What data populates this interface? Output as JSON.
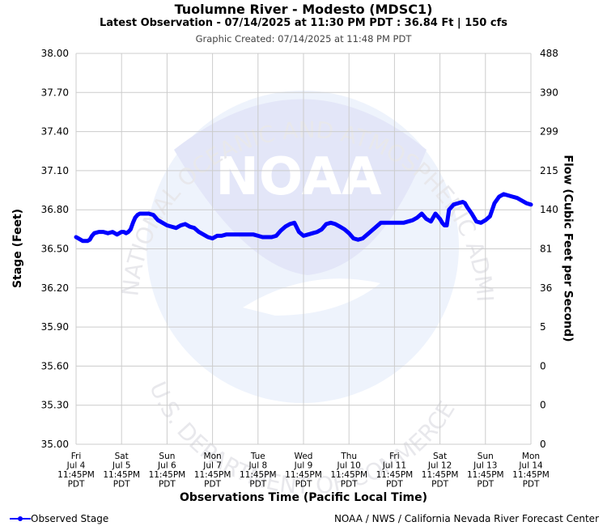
{
  "header": {
    "title": "Tuolumne River - Modesto (MDSC1)",
    "subtitle": "Latest Observation - 07/14/2025 at 11:30 PM PDT : 36.84 Ft | 150 cfs",
    "created": "Graphic Created: 07/14/2025 at 11:48 PM PDT"
  },
  "footer": {
    "legend_label": "Observed Stage",
    "credit": "NOAA / NWS / California Nevada River Forecast Center"
  },
  "watermark": {
    "logo": "NOAA",
    "ring_top": "NATIONAL OCEANIC AND ATMOSPHERIC ADMINISTRATION",
    "ring_bottom": "U.S. DEPARTMENT OF COMMERCE"
  },
  "colors": {
    "series": "#0000ff",
    "grid": "#cccccc",
    "watermark": "#e6eefb"
  },
  "chart_data": {
    "type": "line",
    "xlabel": "Observations Time (Pacific Local Time)",
    "ylabel": "Stage (Feet)",
    "ylabel_right": "Flow (Cubic Feet per Second)",
    "ylim": [
      35.0,
      38.0
    ],
    "yticks": [
      "35.00",
      "35.30",
      "35.60",
      "35.90",
      "36.20",
      "36.50",
      "36.80",
      "37.10",
      "37.40",
      "37.70",
      "38.00"
    ],
    "yticks_right": [
      "0",
      "0",
      "0",
      "5",
      "36",
      "81",
      "140",
      "215",
      "299",
      "390",
      "488"
    ],
    "xlim_days": [
      "Fri Jul 4 11:45PM PDT",
      "Mon Jul 14 11:45PM PDT"
    ],
    "xticks": [
      [
        "Fri",
        "Jul 4",
        "11:45PM",
        "PDT"
      ],
      [
        "Sat",
        "Jul 5",
        "11:45PM",
        "PDT"
      ],
      [
        "Sun",
        "Jul 6",
        "11:45PM",
        "PDT"
      ],
      [
        "Mon",
        "Jul 7",
        "11:45PM",
        "PDT"
      ],
      [
        "Tue",
        "Jul 8",
        "11:45PM",
        "PDT"
      ],
      [
        "Wed",
        "Jul 9",
        "11:45PM",
        "PDT"
      ],
      [
        "Thu",
        "Jul 10",
        "11:45PM",
        "PDT"
      ],
      [
        "Fri",
        "Jul 11",
        "11:45PM",
        "PDT"
      ],
      [
        "Sat",
        "Jul 12",
        "11:45PM",
        "PDT"
      ],
      [
        "Sun",
        "Jul 13",
        "11:45PM",
        "PDT"
      ],
      [
        "Mon",
        "Jul 14",
        "11:45PM",
        "PDT"
      ]
    ],
    "grid": true,
    "series": [
      {
        "name": "Observed Stage",
        "x": [
          0,
          0.05,
          0.1,
          0.15,
          0.2,
          0.25,
          0.3,
          0.35,
          0.4,
          0.5,
          0.6,
          0.7,
          0.8,
          0.9,
          1.0,
          1.05,
          1.1,
          1.15,
          1.2,
          1.25,
          1.3,
          1.35,
          1.4,
          1.5,
          1.6,
          1.7,
          1.8,
          1.9,
          2.0,
          2.1,
          2.2,
          2.3,
          2.4,
          2.5,
          2.6,
          2.7,
          2.8,
          2.9,
          3.0,
          3.1,
          3.2,
          3.3,
          3.5,
          3.7,
          3.9,
          4.0,
          4.1,
          4.2,
          4.3,
          4.4,
          4.5,
          4.6,
          4.7,
          4.8,
          4.9,
          5.0,
          5.1,
          5.2,
          5.3,
          5.4,
          5.5,
          5.6,
          5.7,
          5.8,
          5.9,
          6.0,
          6.1,
          6.2,
          6.3,
          6.4,
          6.5,
          6.7,
          6.9,
          7.1,
          7.2,
          7.3,
          7.4,
          7.5,
          7.6,
          7.7,
          7.8,
          7.9,
          8.0,
          8.05,
          8.1,
          8.15,
          8.2,
          8.3,
          8.4,
          8.5,
          8.55,
          8.6,
          8.7,
          8.8,
          8.9,
          9.0,
          9.1,
          9.2,
          9.3,
          9.4,
          9.5,
          9.6,
          9.7,
          9.8,
          9.9,
          10.0
        ],
        "y": [
          36.59,
          36.58,
          36.57,
          36.56,
          36.56,
          36.56,
          36.57,
          36.6,
          36.62,
          36.63,
          36.63,
          36.62,
          36.63,
          36.61,
          36.63,
          36.63,
          36.62,
          36.63,
          36.65,
          36.7,
          36.74,
          36.76,
          36.77,
          36.77,
          36.77,
          36.76,
          36.72,
          36.7,
          36.68,
          36.67,
          36.66,
          36.68,
          36.69,
          36.67,
          36.66,
          36.63,
          36.61,
          36.59,
          36.58,
          36.6,
          36.6,
          36.61,
          36.61,
          36.61,
          36.61,
          36.6,
          36.59,
          36.59,
          36.59,
          36.6,
          36.64,
          36.67,
          36.69,
          36.7,
          36.63,
          36.6,
          36.61,
          36.62,
          36.63,
          36.65,
          36.69,
          36.7,
          36.69,
          36.67,
          36.65,
          36.62,
          36.58,
          36.57,
          36.58,
          36.61,
          36.64,
          36.7,
          36.7,
          36.7,
          36.7,
          36.71,
          36.72,
          36.74,
          36.77,
          36.73,
          36.71,
          36.77,
          36.73,
          36.7,
          36.68,
          36.68,
          36.8,
          36.84,
          36.85,
          36.86,
          36.85,
          36.82,
          36.77,
          36.71,
          36.7,
          36.72,
          36.75,
          36.85,
          36.9,
          36.92,
          36.91,
          36.9,
          36.89,
          36.87,
          36.85,
          36.84
        ]
      }
    ]
  }
}
